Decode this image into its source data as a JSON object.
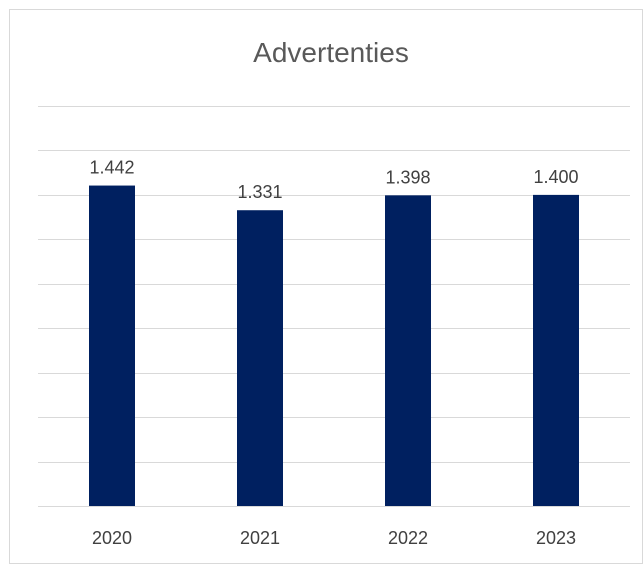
{
  "chart_data": {
    "type": "bar",
    "title": "Advertenties",
    "categories": [
      "2020",
      "2021",
      "2022",
      "2023"
    ],
    "values": [
      1442,
      1331,
      1398,
      1400
    ],
    "value_labels": [
      "1.442",
      "1.331",
      "1.398",
      "1.400"
    ],
    "ylim": [
      0,
      1800
    ],
    "grid": true,
    "legend": "none",
    "bar_color": "#002060",
    "grid_color": "#d9d9d9"
  }
}
